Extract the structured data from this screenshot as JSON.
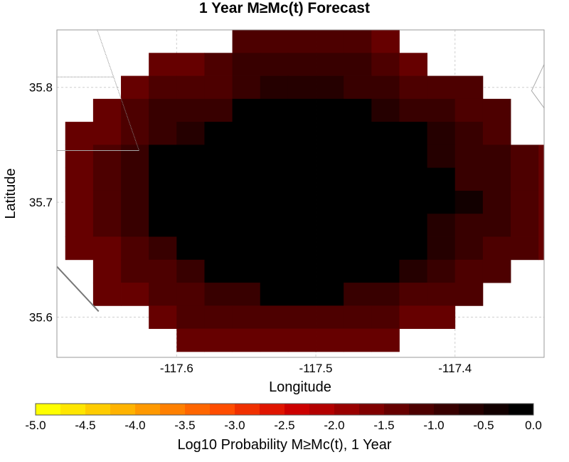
{
  "chart_data": {
    "type": "heatmap",
    "title": "1 Year M≥Mc(t) Forecast",
    "xlabel": "Longitude",
    "ylabel": "Latitude",
    "xlim": [
      -117.686,
      -117.336
    ],
    "ylim": [
      35.565,
      35.85
    ],
    "x_ticks": [
      -117.6,
      -117.5,
      -117.4
    ],
    "x_tick_labels": [
      "-117.6",
      "-117.5",
      "-117.4"
    ],
    "y_ticks": [
      35.6,
      35.7,
      35.8
    ],
    "y_tick_labels": [
      "35.6",
      "35.7",
      "35.8"
    ],
    "grid": true,
    "cell_size_deg": 0.02,
    "grid_x_start": -117.68,
    "grid_y_top": 35.85,
    "values_note_order": "rows top (north) to bottom (south), columns west to east",
    "values": [
      [
        null,
        null,
        null,
        null,
        null,
        null,
        -1.2,
        -1.2,
        -1.2,
        -1.2,
        -1.2,
        -1.4,
        null,
        null,
        null,
        null,
        null,
        null
      ],
      [
        null,
        null,
        null,
        -1.3,
        -1.3,
        -1.2,
        -1.0,
        -1.0,
        -1.0,
        -1.0,
        -1.0,
        -1.2,
        -1.3,
        null,
        null,
        null,
        null,
        null
      ],
      [
        null,
        null,
        -1.5,
        -1.1,
        -1.1,
        -1.1,
        -0.8,
        -0.7,
        -0.7,
        -0.7,
        -0.8,
        -1.0,
        -1.1,
        -1.2,
        -1.2,
        null,
        null,
        null
      ],
      [
        null,
        -1.4,
        -1.1,
        -1.0,
        -1.0,
        -0.8,
        0.0,
        0.0,
        0.0,
        0.0,
        0.0,
        -0.7,
        -0.8,
        -1.0,
        -1.1,
        -1.2,
        null,
        null
      ],
      [
        -1.4,
        -1.3,
        -1.1,
        -1.0,
        -0.7,
        0.0,
        0.0,
        0.0,
        0.0,
        0.0,
        0.0,
        0.0,
        0.0,
        -0.6,
        -1.0,
        -1.2,
        null,
        null
      ],
      [
        -1.4,
        -1.2,
        -0.9,
        0.0,
        0.0,
        0.0,
        0.0,
        0.0,
        0.0,
        0.0,
        0.0,
        0.0,
        0.0,
        -0.6,
        -1.0,
        -1.0,
        -1.2,
        -1.3
      ],
      [
        -1.4,
        -1.2,
        -0.9,
        0.0,
        0.0,
        0.0,
        0.0,
        0.0,
        0.0,
        0.0,
        0.0,
        0.0,
        0.0,
        0.0,
        -0.9,
        -1.0,
        -1.1,
        -1.3
      ],
      [
        -1.4,
        -1.2,
        -0.9,
        0.0,
        0.0,
        0.0,
        0.0,
        0.0,
        0.0,
        0.0,
        0.0,
        0.0,
        0.0,
        0.0,
        -0.4,
        -0.9,
        -1.1,
        -1.3
      ],
      [
        -1.4,
        -1.2,
        -0.9,
        0.0,
        0.0,
        0.0,
        0.0,
        0.0,
        0.0,
        0.0,
        0.0,
        0.0,
        0.0,
        -0.6,
        -0.9,
        -1.0,
        -1.1,
        -1.3
      ],
      [
        -1.4,
        -1.3,
        -1.1,
        -0.8,
        0.0,
        0.0,
        0.0,
        0.0,
        0.0,
        0.0,
        0.0,
        0.0,
        0.0,
        -0.6,
        -1.0,
        -1.1,
        -1.2,
        -1.5
      ],
      [
        null,
        -1.3,
        -1.1,
        -1.1,
        -0.8,
        0.0,
        0.0,
        0.0,
        0.0,
        0.0,
        0.0,
        0.0,
        -0.6,
        -0.9,
        -1.1,
        -1.2,
        null,
        null
      ],
      [
        null,
        -1.5,
        -1.3,
        -1.2,
        -1.2,
        -0.9,
        -0.9,
        0.0,
        0.0,
        0.0,
        -0.8,
        -0.8,
        -1.1,
        -1.1,
        -1.2,
        null,
        null,
        null
      ],
      [
        null,
        null,
        null,
        -1.3,
        -1.2,
        -1.2,
        -1.2,
        -1.2,
        -1.2,
        -1.2,
        -1.2,
        -1.2,
        -1.3,
        -1.3,
        null,
        null,
        null,
        null
      ],
      [
        null,
        null,
        null,
        null,
        -1.5,
        -1.3,
        -1.3,
        -1.3,
        -1.3,
        -1.3,
        -1.3,
        -1.3,
        null,
        null,
        null,
        null,
        null,
        null
      ]
    ],
    "colorbar": {
      "label": "Log10 Probability M≥Mc(t), 1 Year",
      "min": -5.0,
      "max": 0.0,
      "steps": 20,
      "tick_values": [
        -5.0,
        -4.5,
        -4.0,
        -3.5,
        -3.0,
        -2.5,
        -2.0,
        -1.5,
        -1.0,
        -0.5,
        0.0
      ],
      "tick_labels": [
        "-5.0",
        "-4.5",
        "-4.0",
        "-3.5",
        "-3.0",
        "-2.5",
        "-2.0",
        "-1.5",
        "-1.0",
        "-0.5",
        "0.0"
      ],
      "colors": [
        "#ffff00",
        "#ffe600",
        "#ffcc00",
        "#ffb300",
        "#ff9900",
        "#ff8000",
        "#ff6600",
        "#ff4d00",
        "#f03000",
        "#e01500",
        "#cc0000",
        "#b30000",
        "#990000",
        "#800000",
        "#660000",
        "#4d0000",
        "#380000",
        "#250000",
        "#120000",
        "#000000"
      ]
    }
  }
}
